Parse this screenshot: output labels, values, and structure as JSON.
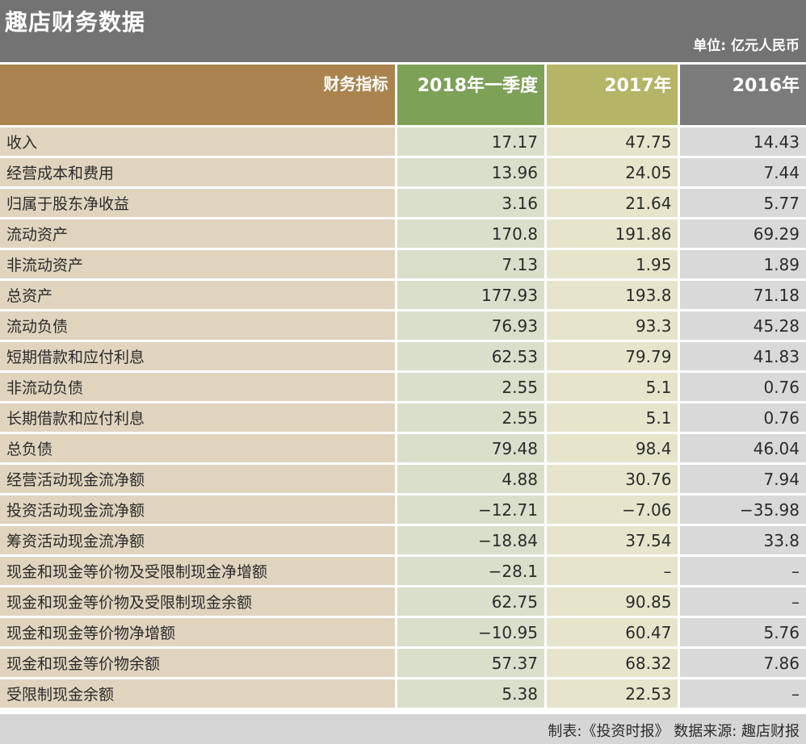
{
  "title": "趣店财务数据",
  "unit": "单位: 亿元人民币",
  "colors": {
    "title_bg": "#737373",
    "header_label_bg": "#aa834f",
    "header_2018q1_bg": "#7ea158",
    "header_2017_bg": "#b5b467",
    "header_2016_bg": "#7b7b7b",
    "label_cell_bg": "#e0d4bf",
    "col_2018q1_bg": "#d9dfca",
    "col_2017_bg": "#e6e5cc",
    "col_2016_bg": "#d9d9d9",
    "footer_bg": "#d6d6d6"
  },
  "table": {
    "headers": [
      "财务指标",
      "2018年一季度",
      "2017年",
      "2016年"
    ],
    "rows": [
      [
        "收入",
        "17.17",
        "47.75",
        "14.43"
      ],
      [
        "经营成本和费用",
        "13.96",
        "24.05",
        "7.44"
      ],
      [
        "归属于股东净收益",
        "3.16",
        "21.64",
        "5.77"
      ],
      [
        "流动资产",
        "170.8",
        "191.86",
        "69.29"
      ],
      [
        "非流动资产",
        "7.13",
        "1.95",
        "1.89"
      ],
      [
        "总资产",
        "177.93",
        "193.8",
        "71.18"
      ],
      [
        "流动负债",
        "76.93",
        "93.3",
        "45.28"
      ],
      [
        "短期借款和应付利息",
        "62.53",
        "79.79",
        "41.83"
      ],
      [
        "非流动负债",
        "2.55",
        "5.1",
        "0.76"
      ],
      [
        "长期借款和应付利息",
        "2.55",
        "5.1",
        "0.76"
      ],
      [
        "总负债",
        "79.48",
        "98.4",
        "46.04"
      ],
      [
        "经营活动现金流净额",
        "4.88",
        "30.76",
        "7.94"
      ],
      [
        "投资活动现金流净额",
        "−12.71",
        "−7.06",
        "−35.98"
      ],
      [
        "筹资活动现金流净额",
        "−18.84",
        "37.54",
        "33.8"
      ],
      [
        "现金和现金等价物及受限制现金净增额",
        "−28.1",
        "–",
        "–"
      ],
      [
        "现金和现金等价物及受限制现金余额",
        "62.75",
        "90.85",
        "–"
      ],
      [
        "现金和现金等价物净增额",
        "−10.95",
        "60.47",
        "5.76"
      ],
      [
        "现金和现金等价物余额",
        "57.37",
        "68.32",
        "7.86"
      ],
      [
        "受限制现金余额",
        "5.38",
        "22.53",
        "–"
      ]
    ]
  },
  "footer": "制表:《投资时报》 数据来源: 趣店财报"
}
